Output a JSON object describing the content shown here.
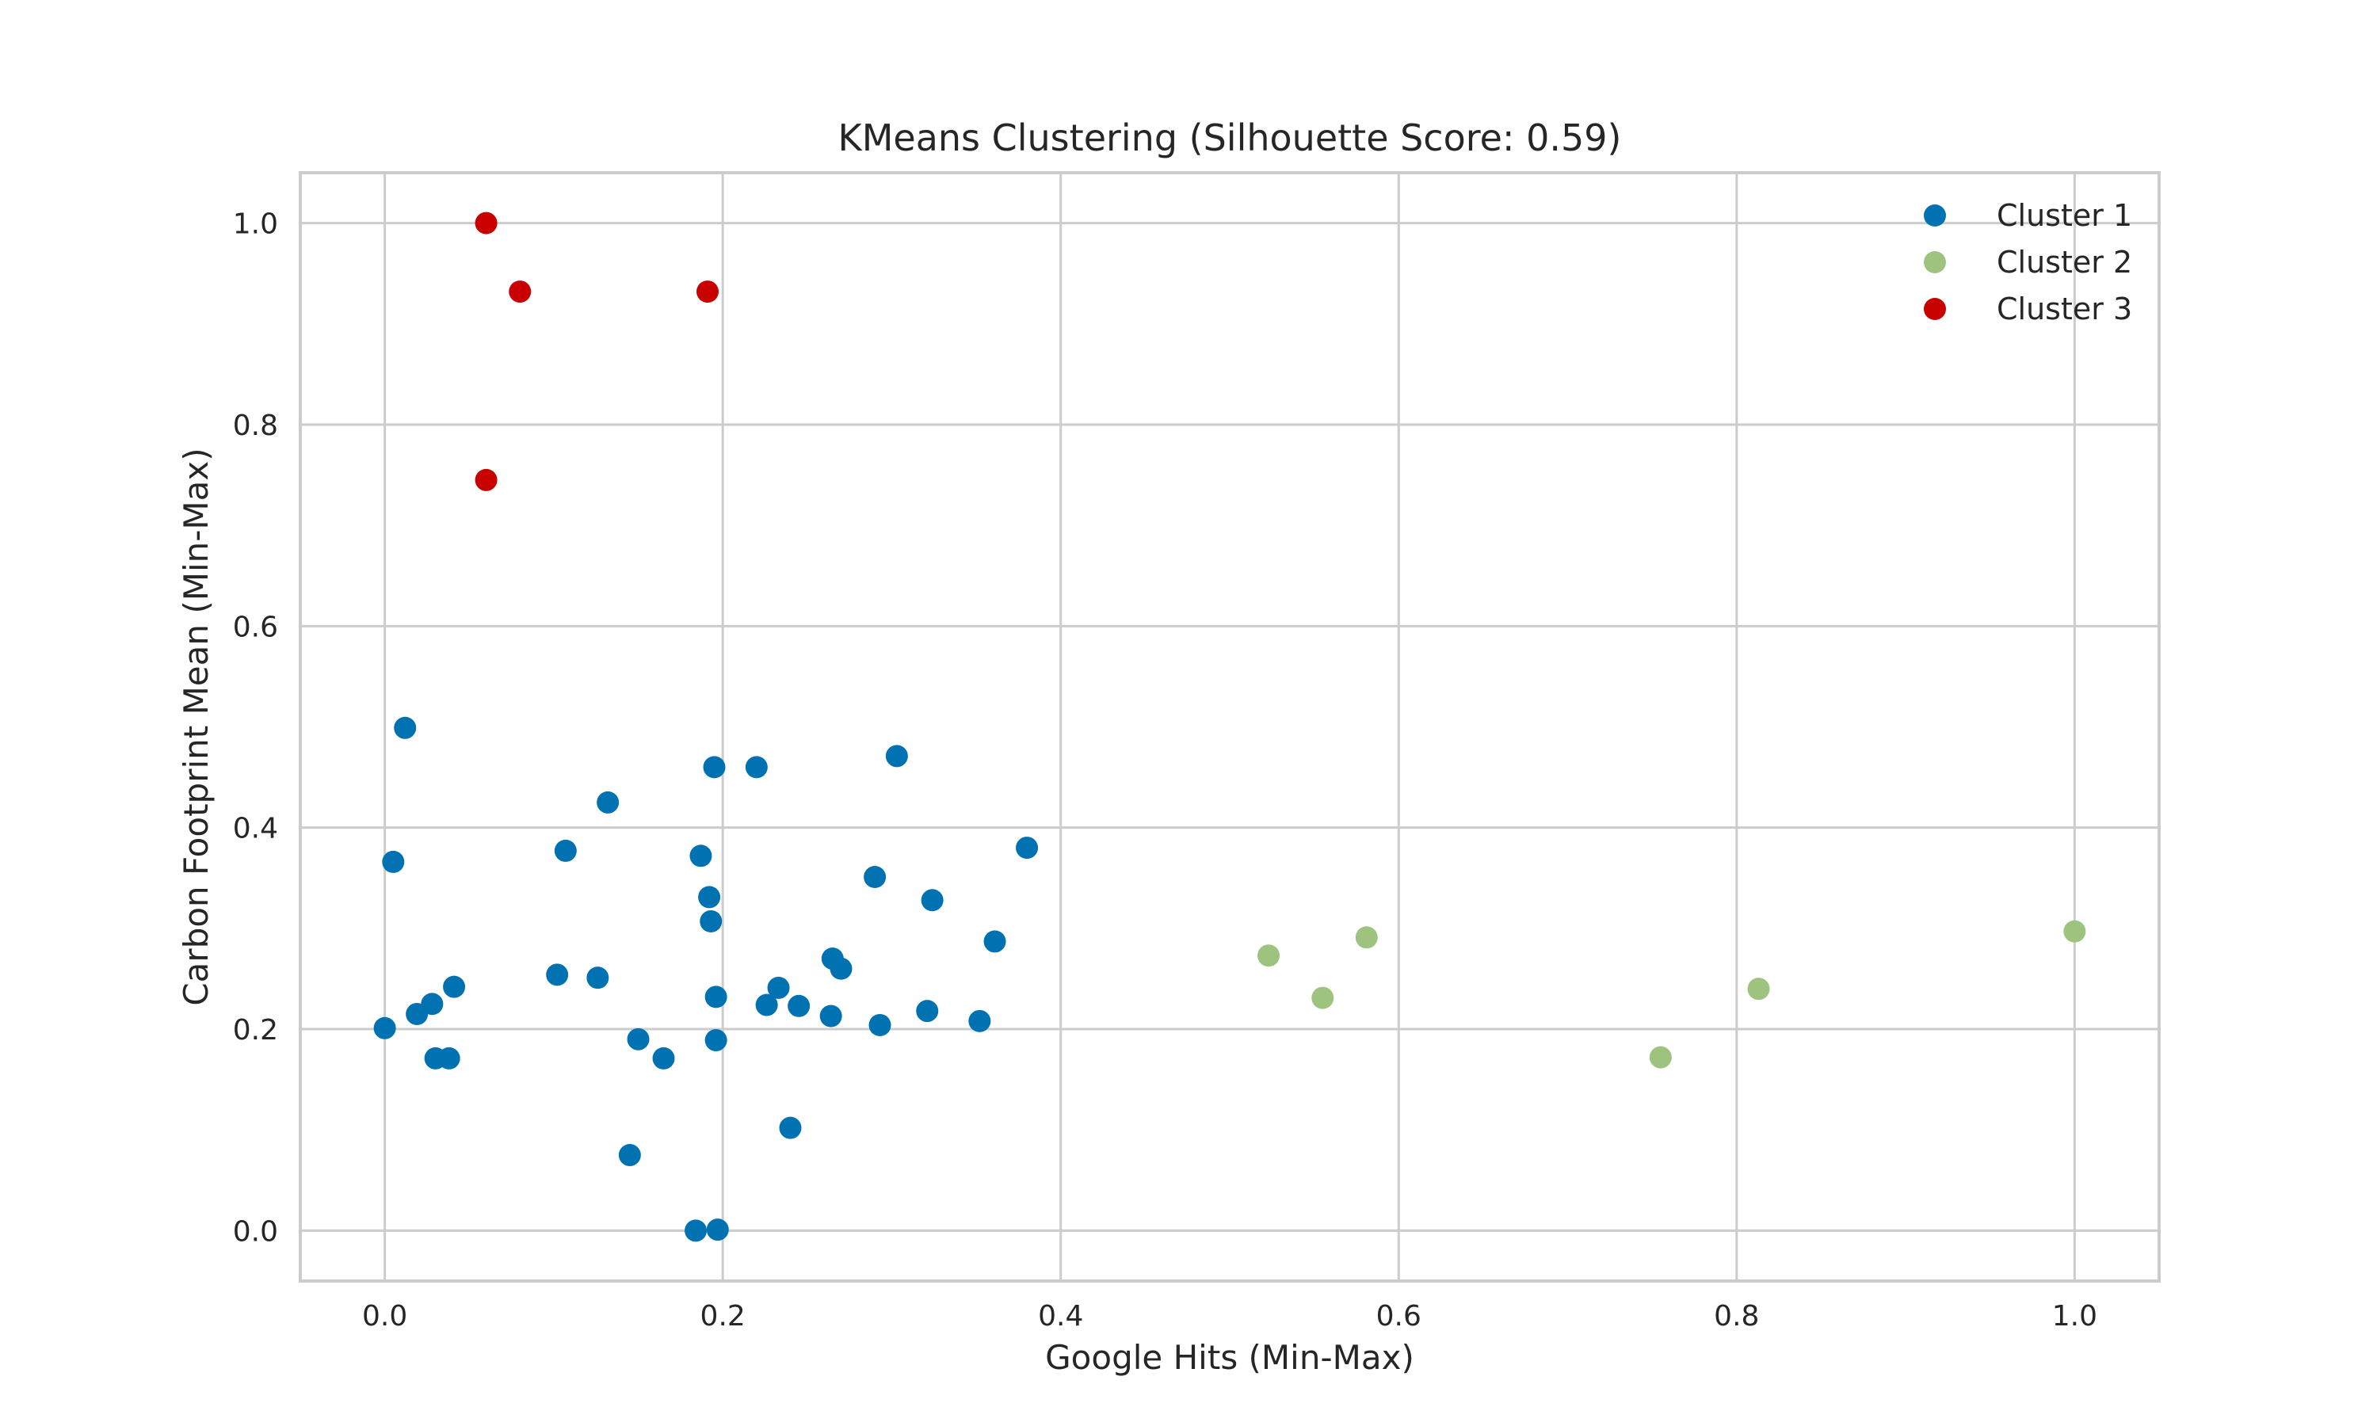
{
  "chart_data": {
    "type": "scatter",
    "title": "KMeans Clustering (Silhouette Score: 0.59)",
    "xlabel": "Google Hits (Min-Max)",
    "ylabel": "Carbon Footprint Mean (Min-Max)",
    "xlim": [
      -0.05,
      1.05
    ],
    "ylim": [
      -0.05,
      1.05
    ],
    "xticks": [
      0.0,
      0.2,
      0.4,
      0.6,
      0.8,
      1.0
    ],
    "xtick_labels": [
      "0.0",
      "0.2",
      "0.4",
      "0.6",
      "0.8",
      "1.0"
    ],
    "yticks": [
      0.0,
      0.2,
      0.4,
      0.6,
      0.8,
      1.0
    ],
    "ytick_labels": [
      "0.0",
      "0.2",
      "0.4",
      "0.6",
      "0.8",
      "1.0"
    ],
    "grid": true,
    "legend_position": "top-right",
    "series": [
      {
        "name": "Cluster 1",
        "color": "#0072B2",
        "points": [
          [
            0.0,
            0.201
          ],
          [
            0.005,
            0.366
          ],
          [
            0.012,
            0.499
          ],
          [
            0.019,
            0.215
          ],
          [
            0.028,
            0.225
          ],
          [
            0.03,
            0.171
          ],
          [
            0.038,
            0.171
          ],
          [
            0.041,
            0.242
          ],
          [
            0.102,
            0.254
          ],
          [
            0.107,
            0.377
          ],
          [
            0.126,
            0.251
          ],
          [
            0.132,
            0.425
          ],
          [
            0.145,
            0.075
          ],
          [
            0.15,
            0.19
          ],
          [
            0.165,
            0.171
          ],
          [
            0.184,
            0.0
          ],
          [
            0.187,
            0.372
          ],
          [
            0.192,
            0.331
          ],
          [
            0.193,
            0.307
          ],
          [
            0.195,
            0.46
          ],
          [
            0.196,
            0.232
          ],
          [
            0.196,
            0.189
          ],
          [
            0.197,
            0.001
          ],
          [
            0.22,
            0.46
          ],
          [
            0.226,
            0.224
          ],
          [
            0.233,
            0.241
          ],
          [
            0.24,
            0.102
          ],
          [
            0.245,
            0.223
          ],
          [
            0.264,
            0.213
          ],
          [
            0.265,
            0.27
          ],
          [
            0.27,
            0.26
          ],
          [
            0.29,
            0.351
          ],
          [
            0.293,
            0.204
          ],
          [
            0.303,
            0.471
          ],
          [
            0.321,
            0.218
          ],
          [
            0.324,
            0.328
          ],
          [
            0.352,
            0.208
          ],
          [
            0.361,
            0.287
          ],
          [
            0.38,
            0.38
          ]
        ]
      },
      {
        "name": "Cluster 2",
        "color": "#9DC37F",
        "points": [
          [
            0.523,
            0.273
          ],
          [
            0.555,
            0.231
          ],
          [
            0.581,
            0.291
          ],
          [
            0.755,
            0.172
          ],
          [
            0.813,
            0.24
          ],
          [
            1.0,
            0.297
          ]
        ]
      },
      {
        "name": "Cluster 3",
        "color": "#C90000",
        "points": [
          [
            0.06,
            1.0
          ],
          [
            0.08,
            0.932
          ],
          [
            0.191,
            0.932
          ],
          [
            0.06,
            0.745
          ]
        ]
      }
    ]
  }
}
